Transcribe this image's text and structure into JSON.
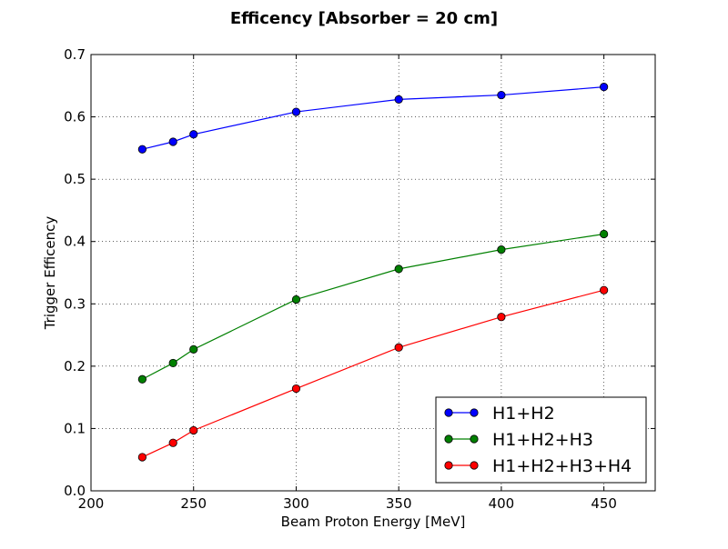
{
  "chart_data": {
    "type": "line",
    "title": "Efficency [Absorber = 20 cm]",
    "xlabel": "Beam Proton Energy [MeV]",
    "ylabel": "Trigger Efficency",
    "xlim": [
      200,
      475
    ],
    "ylim": [
      0.0,
      0.7
    ],
    "xticks": [
      200,
      250,
      300,
      350,
      400,
      450
    ],
    "yticks": [
      0.0,
      0.1,
      0.2,
      0.3,
      0.4,
      0.5,
      0.6,
      0.7
    ],
    "xtick_labels": [
      "200",
      "250",
      "300",
      "350",
      "400",
      "450"
    ],
    "ytick_labels": [
      "0.0",
      "0.1",
      "0.2",
      "0.3",
      "0.4",
      "0.5",
      "0.6",
      "0.7"
    ],
    "grid": true,
    "legend_position": "lower-right",
    "x": [
      225,
      240,
      250,
      300,
      350,
      400,
      450
    ],
    "series": [
      {
        "name": "H1+H2",
        "color": "#0000ff",
        "values": [
          0.548,
          0.56,
          0.572,
          0.608,
          0.628,
          0.635,
          0.648
        ]
      },
      {
        "name": "H1+H2+H3",
        "color": "#008000",
        "values": [
          0.179,
          0.205,
          0.227,
          0.307,
          0.356,
          0.387,
          0.412
        ]
      },
      {
        "name": "H1+H2+H3+H4",
        "color": "#ff0000",
        "values": [
          0.054,
          0.077,
          0.097,
          0.164,
          0.23,
          0.279,
          0.322
        ]
      }
    ]
  }
}
